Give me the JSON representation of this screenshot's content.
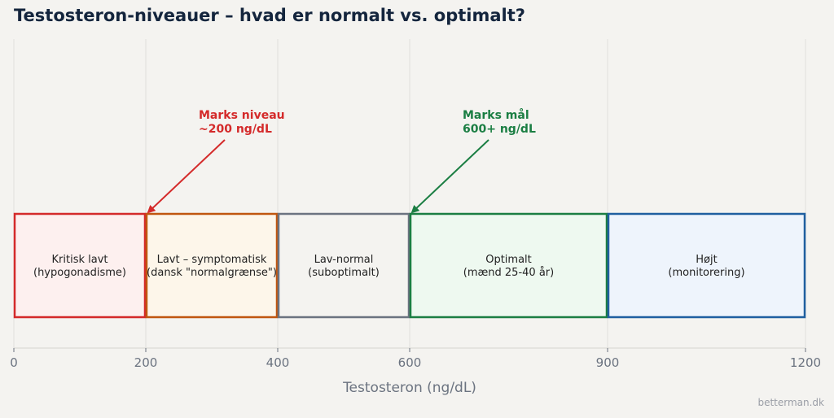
{
  "title": "Testosteron-niveauer – hvad er normalt vs. optimalt?",
  "watermark": "betterman.dk",
  "chart_data": {
    "type": "bar",
    "orientation": "horizontal-range",
    "xlabel": "Testosteron (ng/dL)",
    "xlim": [
      0,
      1200
    ],
    "ticks": [
      0,
      200,
      400,
      600,
      900,
      1200
    ],
    "grid": "vertical",
    "segments": [
      {
        "start": 0,
        "end": 200,
        "line1": "Kritisk lavt",
        "line2": "(hypogonadisme)",
        "edge": "#d42a2a",
        "fill": "#fdf0ef"
      },
      {
        "start": 200,
        "end": 400,
        "line1": "Lavt – symptomatisk",
        "line2": "(dansk \"normalgrænse\")",
        "edge": "#c0560f",
        "fill": "#fdf6ea"
      },
      {
        "start": 400,
        "end": 600,
        "line1": "Lav-normal",
        "line2": "(suboptimalt)",
        "edge": "#6b7380",
        "fill": "#f4f3f0"
      },
      {
        "start": 600,
        "end": 900,
        "line1": "Optimalt",
        "line2": "(mænd 25-40 år)",
        "edge": "#1b7e43",
        "fill": "#eef9f0"
      },
      {
        "start": 900,
        "end": 1200,
        "line1": "Højt",
        "line2": "(monitorering)",
        "edge": "#1f5fa0",
        "fill": "#eef4fc"
      }
    ],
    "annotations": [
      {
        "line1": "Marks niveau",
        "line2": "~200 ng/dL",
        "target": 200,
        "color": "#d42a2a"
      },
      {
        "line1": "Marks mål",
        "line2": "600+ ng/dL",
        "target": 600,
        "color": "#1b7e43"
      }
    ]
  }
}
